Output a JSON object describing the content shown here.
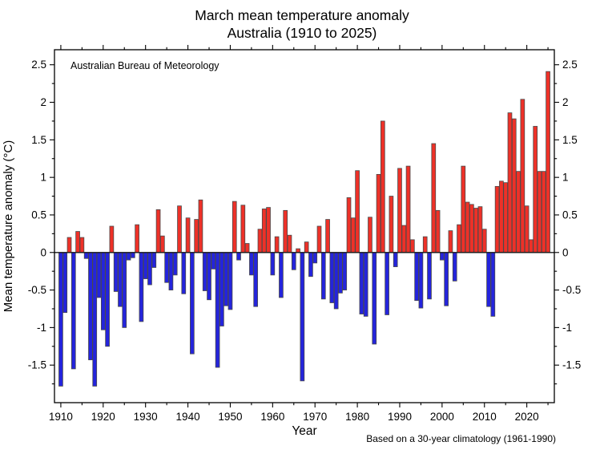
{
  "chart_data": {
    "type": "bar",
    "title": "March mean temperature anomaly",
    "subtitle": "Australia (1910 to 2025)",
    "xlabel": "Year",
    "ylabel": "Mean temperature anomaly (°C)",
    "annotation": "Australian Bureau of Meteorology",
    "footnote": "Based on a 30-year climatology (1961-1990)",
    "xlim": [
      1908.5,
      2026.5
    ],
    "ylim": [
      -2.0,
      2.7
    ],
    "yticks": [
      -1.5,
      -1,
      -0.5,
      0,
      0.5,
      1,
      1.5,
      2,
      2.5
    ],
    "ytick_labels": [
      "-1.5",
      "-1",
      "-0.5",
      "0",
      "0.5",
      "1",
      "1.5",
      "2",
      "2.5"
    ],
    "ytick_minor_step": 0.25,
    "xticks_labeled": [
      1910,
      1920,
      1930,
      1940,
      1950,
      1960,
      1970,
      1980,
      1990,
      2000,
      2010,
      2020
    ],
    "xtick_minor_step": 5,
    "grid": false,
    "legend": "none",
    "colors": {
      "positive": "#ee3128",
      "negative": "#2424dc",
      "bar_stroke": "#4a4a4a",
      "axis": "#000000",
      "zero_line": "#1a1a1a",
      "footnote_color": "#3d3d3d"
    },
    "years": [
      1910,
      1911,
      1912,
      1913,
      1914,
      1915,
      1916,
      1917,
      1918,
      1919,
      1920,
      1921,
      1922,
      1923,
      1924,
      1925,
      1926,
      1927,
      1928,
      1929,
      1930,
      1931,
      1932,
      1933,
      1934,
      1935,
      1936,
      1937,
      1938,
      1939,
      1940,
      1941,
      1942,
      1943,
      1944,
      1945,
      1946,
      1947,
      1948,
      1949,
      1950,
      1951,
      1952,
      1953,
      1954,
      1955,
      1956,
      1957,
      1958,
      1959,
      1960,
      1961,
      1962,
      1963,
      1964,
      1965,
      1966,
      1967,
      1968,
      1969,
      1970,
      1971,
      1972,
      1973,
      1974,
      1975,
      1976,
      1977,
      1978,
      1979,
      1980,
      1981,
      1982,
      1983,
      1984,
      1985,
      1986,
      1987,
      1988,
      1989,
      1990,
      1991,
      1992,
      1993,
      1994,
      1995,
      1996,
      1997,
      1998,
      1999,
      2000,
      2001,
      2002,
      2003,
      2004,
      2005,
      2006,
      2007,
      2008,
      2009,
      2010,
      2011,
      2012,
      2013,
      2014,
      2015,
      2016,
      2017,
      2018,
      2019,
      2020,
      2021,
      2022,
      2023,
      2024,
      2025
    ],
    "values": [
      -1.78,
      -0.8,
      0.2,
      -1.55,
      0.28,
      0.2,
      -0.08,
      -1.43,
      -1.78,
      -0.6,
      -1.03,
      -1.25,
      0.35,
      -0.52,
      -0.72,
      -1.0,
      -0.1,
      -0.07,
      0.37,
      -0.92,
      -0.35,
      -0.43,
      -0.2,
      0.57,
      0.22,
      -0.4,
      -0.5,
      -0.3,
      0.62,
      -0.55,
      0.46,
      -1.35,
      0.44,
      0.7,
      -0.51,
      -0.63,
      -0.22,
      -1.53,
      -0.98,
      -0.71,
      -0.76,
      0.68,
      -0.1,
      0.63,
      0.12,
      -0.3,
      -0.72,
      0.31,
      0.58,
      0.6,
      -0.3,
      0.21,
      -0.6,
      0.56,
      0.23,
      -0.23,
      0.05,
      -1.71,
      0.14,
      -0.32,
      -0.14,
      0.35,
      -0.62,
      0.44,
      -0.67,
      -0.75,
      -0.54,
      -0.5,
      0.73,
      0.46,
      1.09,
      -0.82,
      -0.85,
      0.47,
      -1.22,
      1.04,
      1.75,
      -0.83,
      0.75,
      -0.19,
      1.12,
      0.36,
      1.15,
      0.17,
      -0.64,
      -0.74,
      0.21,
      -0.62,
      1.45,
      0.56,
      -0.1,
      -0.71,
      0.29,
      -0.38,
      0.37,
      1.15,
      0.67,
      0.64,
      0.59,
      0.61,
      0.31,
      -0.72,
      -0.85,
      0.88,
      0.95,
      0.93,
      1.86,
      1.78,
      1.08,
      2.04,
      0.62,
      0.17,
      1.68,
      1.08,
      1.08,
      2.41
    ]
  }
}
